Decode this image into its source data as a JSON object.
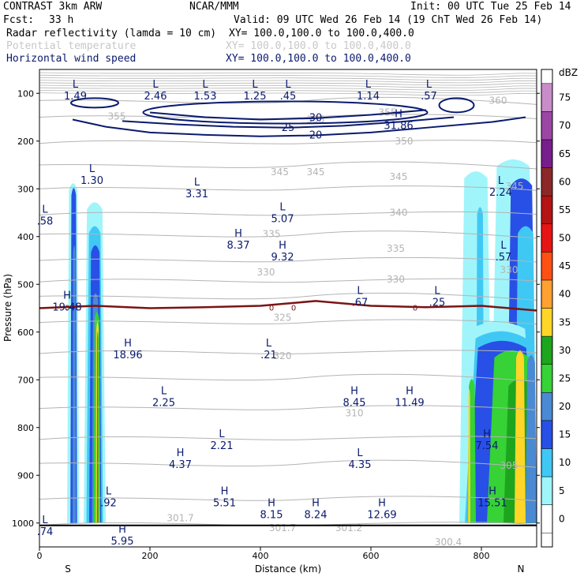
{
  "header": {
    "title": "CONTRAST  3km ARW",
    "org": "NCAR/MMM",
    "init": "Init: 00 UTC Tue 25 Feb 14",
    "fcst_label": "Fcst:",
    "fcst_value": "33 h",
    "valid": "Valid: 09 UTC Wed 26 Feb 14 (19 ChT Wed 26 Feb 14)",
    "fields": [
      {
        "name": "Radar reflectivity (lamda = 10 cm)",
        "xy": "XY= 100.0,100.0 to 100.0,400.0",
        "color": "#000000"
      },
      {
        "name": "Potential temperature",
        "xy": "XY= 100.0,100.0 to 100.0,400.0",
        "color": "#c8c8c8"
      },
      {
        "name": "Horizontal wind speed",
        "xy": "XY= 100.0,100.0 to 100.0,400.0",
        "color": "#0a1a6e"
      }
    ]
  },
  "chart_data": {
    "type": "cross-section",
    "xlabel": "Distance (km)",
    "ylabel": "Pressure (hPa)",
    "xlim": [
      0,
      900
    ],
    "ylim": [
      1050,
      50
    ],
    "x_ticks": [
      0,
      200,
      400,
      600,
      800
    ],
    "y_ticks": [
      100,
      200,
      300,
      400,
      500,
      600,
      700,
      800,
      900,
      1000
    ],
    "end_labels": {
      "left": "S",
      "right": "N"
    },
    "colorbar": {
      "unit": "dBZ",
      "levels": [
        0,
        5,
        10,
        15,
        20,
        25,
        30,
        35,
        40,
        45,
        50,
        55,
        60,
        65,
        70,
        75
      ],
      "colors": [
        "#ffffff",
        "#a0f5fa",
        "#40c8f5",
        "#2850e6",
        "#4a8ad2",
        "#36d236",
        "#1ea51e",
        "#ffd628",
        "#ffa032",
        "#ff5014",
        "#e61414",
        "#b41414",
        "#8c2828",
        "#781e8c",
        "#9b46a5",
        "#c88cc8"
      ]
    },
    "wind_contours": [
      {
        "level": "20",
        "points": [
          [
            60,
            155
          ],
          [
            120,
            170
          ],
          [
            200,
            182
          ],
          [
            300,
            187
          ],
          [
            400,
            190
          ],
          [
            500,
            188
          ],
          [
            600,
            182
          ],
          [
            700,
            172
          ],
          [
            820,
            160
          ],
          [
            880,
            150
          ]
        ]
      },
      {
        "level": "25",
        "points": [
          [
            150,
            158
          ],
          [
            250,
            165
          ],
          [
            350,
            170
          ],
          [
            450,
            172
          ],
          [
            550,
            168
          ],
          [
            650,
            160
          ],
          [
            750,
            150
          ]
        ]
      },
      {
        "level": "30",
        "points": [
          [
            200,
            140
          ],
          [
            300,
            150
          ],
          [
            400,
            155
          ],
          [
            500,
            152
          ],
          [
            600,
            145
          ],
          [
            700,
            135
          ]
        ]
      }
    ],
    "wind_labels": [
      {
        "kind": "L",
        "value": "1.49",
        "x": 65,
        "p": 88
      },
      {
        "kind": "L",
        "value": "2.46",
        "x": 210,
        "p": 88
      },
      {
        "kind": "L",
        "value": "1.53",
        "x": 300,
        "p": 88
      },
      {
        "kind": "L",
        "value": "1.25",
        "x": 390,
        "p": 88
      },
      {
        "kind": "L",
        "value": ".45",
        "x": 450,
        "p": 88
      },
      {
        "kind": "L",
        "value": "1.14",
        "x": 595,
        "p": 88
      },
      {
        "kind": "L",
        "value": ".57",
        "x": 705,
        "p": 88
      },
      {
        "kind": "H",
        "value": "31.86",
        "x": 650,
        "p": 150
      },
      {
        "kind": "L",
        "value": "1.30",
        "x": 95,
        "p": 265
      },
      {
        "kind": "L",
        "value": "3.31",
        "x": 285,
        "p": 293
      },
      {
        "kind": "L",
        "value": "2.24",
        "x": 835,
        "p": 290
      },
      {
        "kind": "L",
        "value": ".58",
        "x": 10,
        "p": 350
      },
      {
        "kind": "L",
        "value": "5.07",
        "x": 440,
        "p": 345
      },
      {
        "kind": "H",
        "value": "8.37",
        "x": 360,
        "p": 400
      },
      {
        "kind": "H",
        "value": "9.32",
        "x": 440,
        "p": 425
      },
      {
        "kind": "L",
        "value": ".57",
        "x": 840,
        "p": 425
      },
      {
        "kind": "H",
        "value": "19.48",
        "x": 50,
        "p": 530
      },
      {
        "kind": "L",
        "value": ".67",
        "x": 580,
        "p": 520
      },
      {
        "kind": "L",
        "value": ".25",
        "x": 720,
        "p": 520
      },
      {
        "kind": "H",
        "value": "18.96",
        "x": 160,
        "p": 630
      },
      {
        "kind": "L",
        "value": ".21",
        "x": 415,
        "p": 630
      },
      {
        "kind": "L",
        "value": "2.25",
        "x": 225,
        "p": 730
      },
      {
        "kind": "H",
        "value": "8.45",
        "x": 570,
        "p": 730
      },
      {
        "kind": "H",
        "value": "11.49",
        "x": 670,
        "p": 730
      },
      {
        "kind": "L",
        "value": "2.21",
        "x": 330,
        "p": 820
      },
      {
        "kind": "H",
        "value": "4.37",
        "x": 255,
        "p": 860
      },
      {
        "kind": "L",
        "value": "4.35",
        "x": 580,
        "p": 860
      },
      {
        "kind": "H",
        "value": "7.54",
        "x": 810,
        "p": 820
      },
      {
        "kind": "L",
        "value": ".92",
        "x": 125,
        "p": 940
      },
      {
        "kind": "H",
        "value": "5.51",
        "x": 335,
        "p": 940
      },
      {
        "kind": "H",
        "value": "8.15",
        "x": 420,
        "p": 965
      },
      {
        "kind": "H",
        "value": "8.24",
        "x": 500,
        "p": 965
      },
      {
        "kind": "H",
        "value": "12.69",
        "x": 620,
        "p": 965
      },
      {
        "kind": "H",
        "value": "15.51",
        "x": 820,
        "p": 940
      },
      {
        "kind": "L",
        "value": ".74",
        "x": 10,
        "p": 1000
      },
      {
        "kind": "H",
        "value": "5.95",
        "x": 150,
        "p": 1020
      }
    ],
    "theta_labels": [
      {
        "value": "360",
        "x": 830,
        "p": 115
      },
      {
        "value": "355",
        "x": 140,
        "p": 148
      },
      {
        "value": "355",
        "x": 500,
        "p": 155
      },
      {
        "value": "355",
        "x": 630,
        "p": 140
      },
      {
        "value": "350",
        "x": 660,
        "p": 200
      },
      {
        "value": "345",
        "x": 435,
        "p": 265
      },
      {
        "value": "345",
        "x": 500,
        "p": 265
      },
      {
        "value": "345",
        "x": 650,
        "p": 275
      },
      {
        "value": "345",
        "x": 860,
        "p": 295
      },
      {
        "value": "340",
        "x": 650,
        "p": 350
      },
      {
        "value": "335",
        "x": 420,
        "p": 395
      },
      {
        "value": "335",
        "x": 645,
        "p": 425
      },
      {
        "value": "330",
        "x": 410,
        "p": 475
      },
      {
        "value": "330",
        "x": 645,
        "p": 490
      },
      {
        "value": "330",
        "x": 850,
        "p": 470
      },
      {
        "value": "325",
        "x": 440,
        "p": 570
      },
      {
        "value": "320",
        "x": 440,
        "p": 650
      },
      {
        "value": "310",
        "x": 570,
        "p": 770
      },
      {
        "value": "305",
        "x": 850,
        "p": 880
      },
      {
        "value": "301.7",
        "x": 255,
        "p": 990
      },
      {
        "value": "301.7",
        "x": 440,
        "p": 1010
      },
      {
        "value": "301.2",
        "x": 560,
        "p": 1010
      },
      {
        "value": "300.4",
        "x": 740,
        "p": 1040
      }
    ],
    "freezing_level": {
      "label": "0",
      "points": [
        [
          0,
          550
        ],
        [
          100,
          545
        ],
        [
          200,
          550
        ],
        [
          300,
          548
        ],
        [
          400,
          545
        ],
        [
          500,
          535
        ],
        [
          600,
          545
        ],
        [
          700,
          548
        ],
        [
          800,
          545
        ],
        [
          900,
          555
        ]
      ]
    }
  }
}
